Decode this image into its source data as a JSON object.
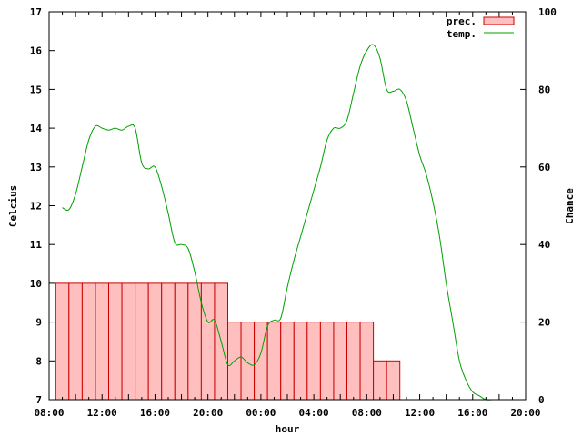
{
  "chart_data": {
    "type": "bar+line",
    "title": "",
    "xlabel": "hour",
    "ylabel_left": "Celcius",
    "ylabel_right": "Chance",
    "x_ticks": [
      "08:00",
      "12:00",
      "16:00",
      "20:00",
      "00:00",
      "04:00",
      "08:00",
      "12:00",
      "16:00",
      "20:00"
    ],
    "x_range_hours": [
      0,
      72
    ],
    "y_left_range": [
      7,
      17
    ],
    "y_left_ticks": [
      7,
      8,
      9,
      10,
      11,
      12,
      13,
      14,
      15,
      16,
      17
    ],
    "y_right_range": [
      0,
      100
    ],
    "y_right_ticks": [
      0,
      20,
      40,
      60,
      80,
      100
    ],
    "grid": false,
    "legend_position": "top-right",
    "colors": {
      "bar_fill": "#ffbfbf",
      "bar_stroke": "#cc0000",
      "line": "#00a000",
      "axis": "#000000"
    },
    "series": [
      {
        "name": "prec.",
        "type": "bar",
        "axis": "right",
        "bars": [
          {
            "start": 1,
            "end": 3,
            "value": 30
          },
          {
            "start": 3,
            "end": 5,
            "value": 30
          },
          {
            "start": 5,
            "end": 7,
            "value": 30
          },
          {
            "start": 7,
            "end": 9,
            "value": 30
          },
          {
            "start": 9,
            "end": 11,
            "value": 30
          },
          {
            "start": 11,
            "end": 13,
            "value": 30
          },
          {
            "start": 13,
            "end": 15,
            "value": 30
          },
          {
            "start": 15,
            "end": 17,
            "value": 30
          },
          {
            "start": 17,
            "end": 19,
            "value": 30
          },
          {
            "start": 19,
            "end": 21,
            "value": 30
          },
          {
            "start": 21,
            "end": 23,
            "value": 30
          },
          {
            "start": 23,
            "end": 25,
            "value": 30
          },
          {
            "start": 25,
            "end": 27,
            "value": 30
          },
          {
            "start": 27,
            "end": 29,
            "value": 20
          },
          {
            "start": 29,
            "end": 31,
            "value": 20
          },
          {
            "start": 31,
            "end": 33,
            "value": 20
          },
          {
            "start": 33,
            "end": 35,
            "value": 20
          },
          {
            "start": 35,
            "end": 37,
            "value": 20
          },
          {
            "start": 37,
            "end": 39,
            "value": 20
          },
          {
            "start": 39,
            "end": 41,
            "value": 20
          },
          {
            "start": 41,
            "end": 43,
            "value": 20
          },
          {
            "start": 43,
            "end": 45,
            "value": 20
          },
          {
            "start": 45,
            "end": 47,
            "value": 20
          },
          {
            "start": 47,
            "end": 49,
            "value": 20
          },
          {
            "start": 49,
            "end": 51,
            "value": 10
          },
          {
            "start": 51,
            "end": 53,
            "value": 10
          }
        ]
      },
      {
        "name": "temp.",
        "type": "line",
        "axis": "left",
        "x": [
          2,
          3,
          4,
          5,
          6,
          7,
          8,
          9,
          10,
          11,
          12,
          13,
          14,
          15,
          16,
          17,
          18,
          19,
          20,
          21,
          22,
          23,
          24,
          25,
          26,
          27,
          28,
          29,
          30,
          31,
          32,
          33,
          34,
          35,
          36,
          37,
          38,
          39,
          40,
          41,
          42,
          43,
          44,
          45,
          46,
          47,
          48,
          49,
          50,
          51,
          52,
          53,
          54,
          55,
          56,
          57,
          58,
          59,
          60,
          61,
          62,
          63,
          64,
          65,
          66,
          67,
          68,
          69,
          70,
          71,
          72
        ],
        "y": [
          11.95,
          11.9,
          12.3,
          13.0,
          13.7,
          14.05,
          14.0,
          13.95,
          14.0,
          13.95,
          14.05,
          14.0,
          13.1,
          12.95,
          13.0,
          12.5,
          11.8,
          11.05,
          11.0,
          10.9,
          10.3,
          9.5,
          9.0,
          9.05,
          8.5,
          7.9,
          8.0,
          8.1,
          7.95,
          7.9,
          8.2,
          8.9,
          9.05,
          9.1,
          9.9,
          10.6,
          11.2,
          11.8,
          12.4,
          13.0,
          13.7,
          14.0,
          14.0,
          14.2,
          14.9,
          15.6,
          16.0,
          16.15,
          15.8,
          15.0,
          14.95,
          15.0,
          14.7,
          14.0,
          13.3,
          12.8,
          12.1,
          11.2,
          10.0,
          9.0,
          8.0,
          7.5,
          7.2,
          7.1,
          7.0,
          7.0,
          7.0,
          7.0,
          7.0,
          7.0,
          7.0
        ]
      }
    ]
  }
}
